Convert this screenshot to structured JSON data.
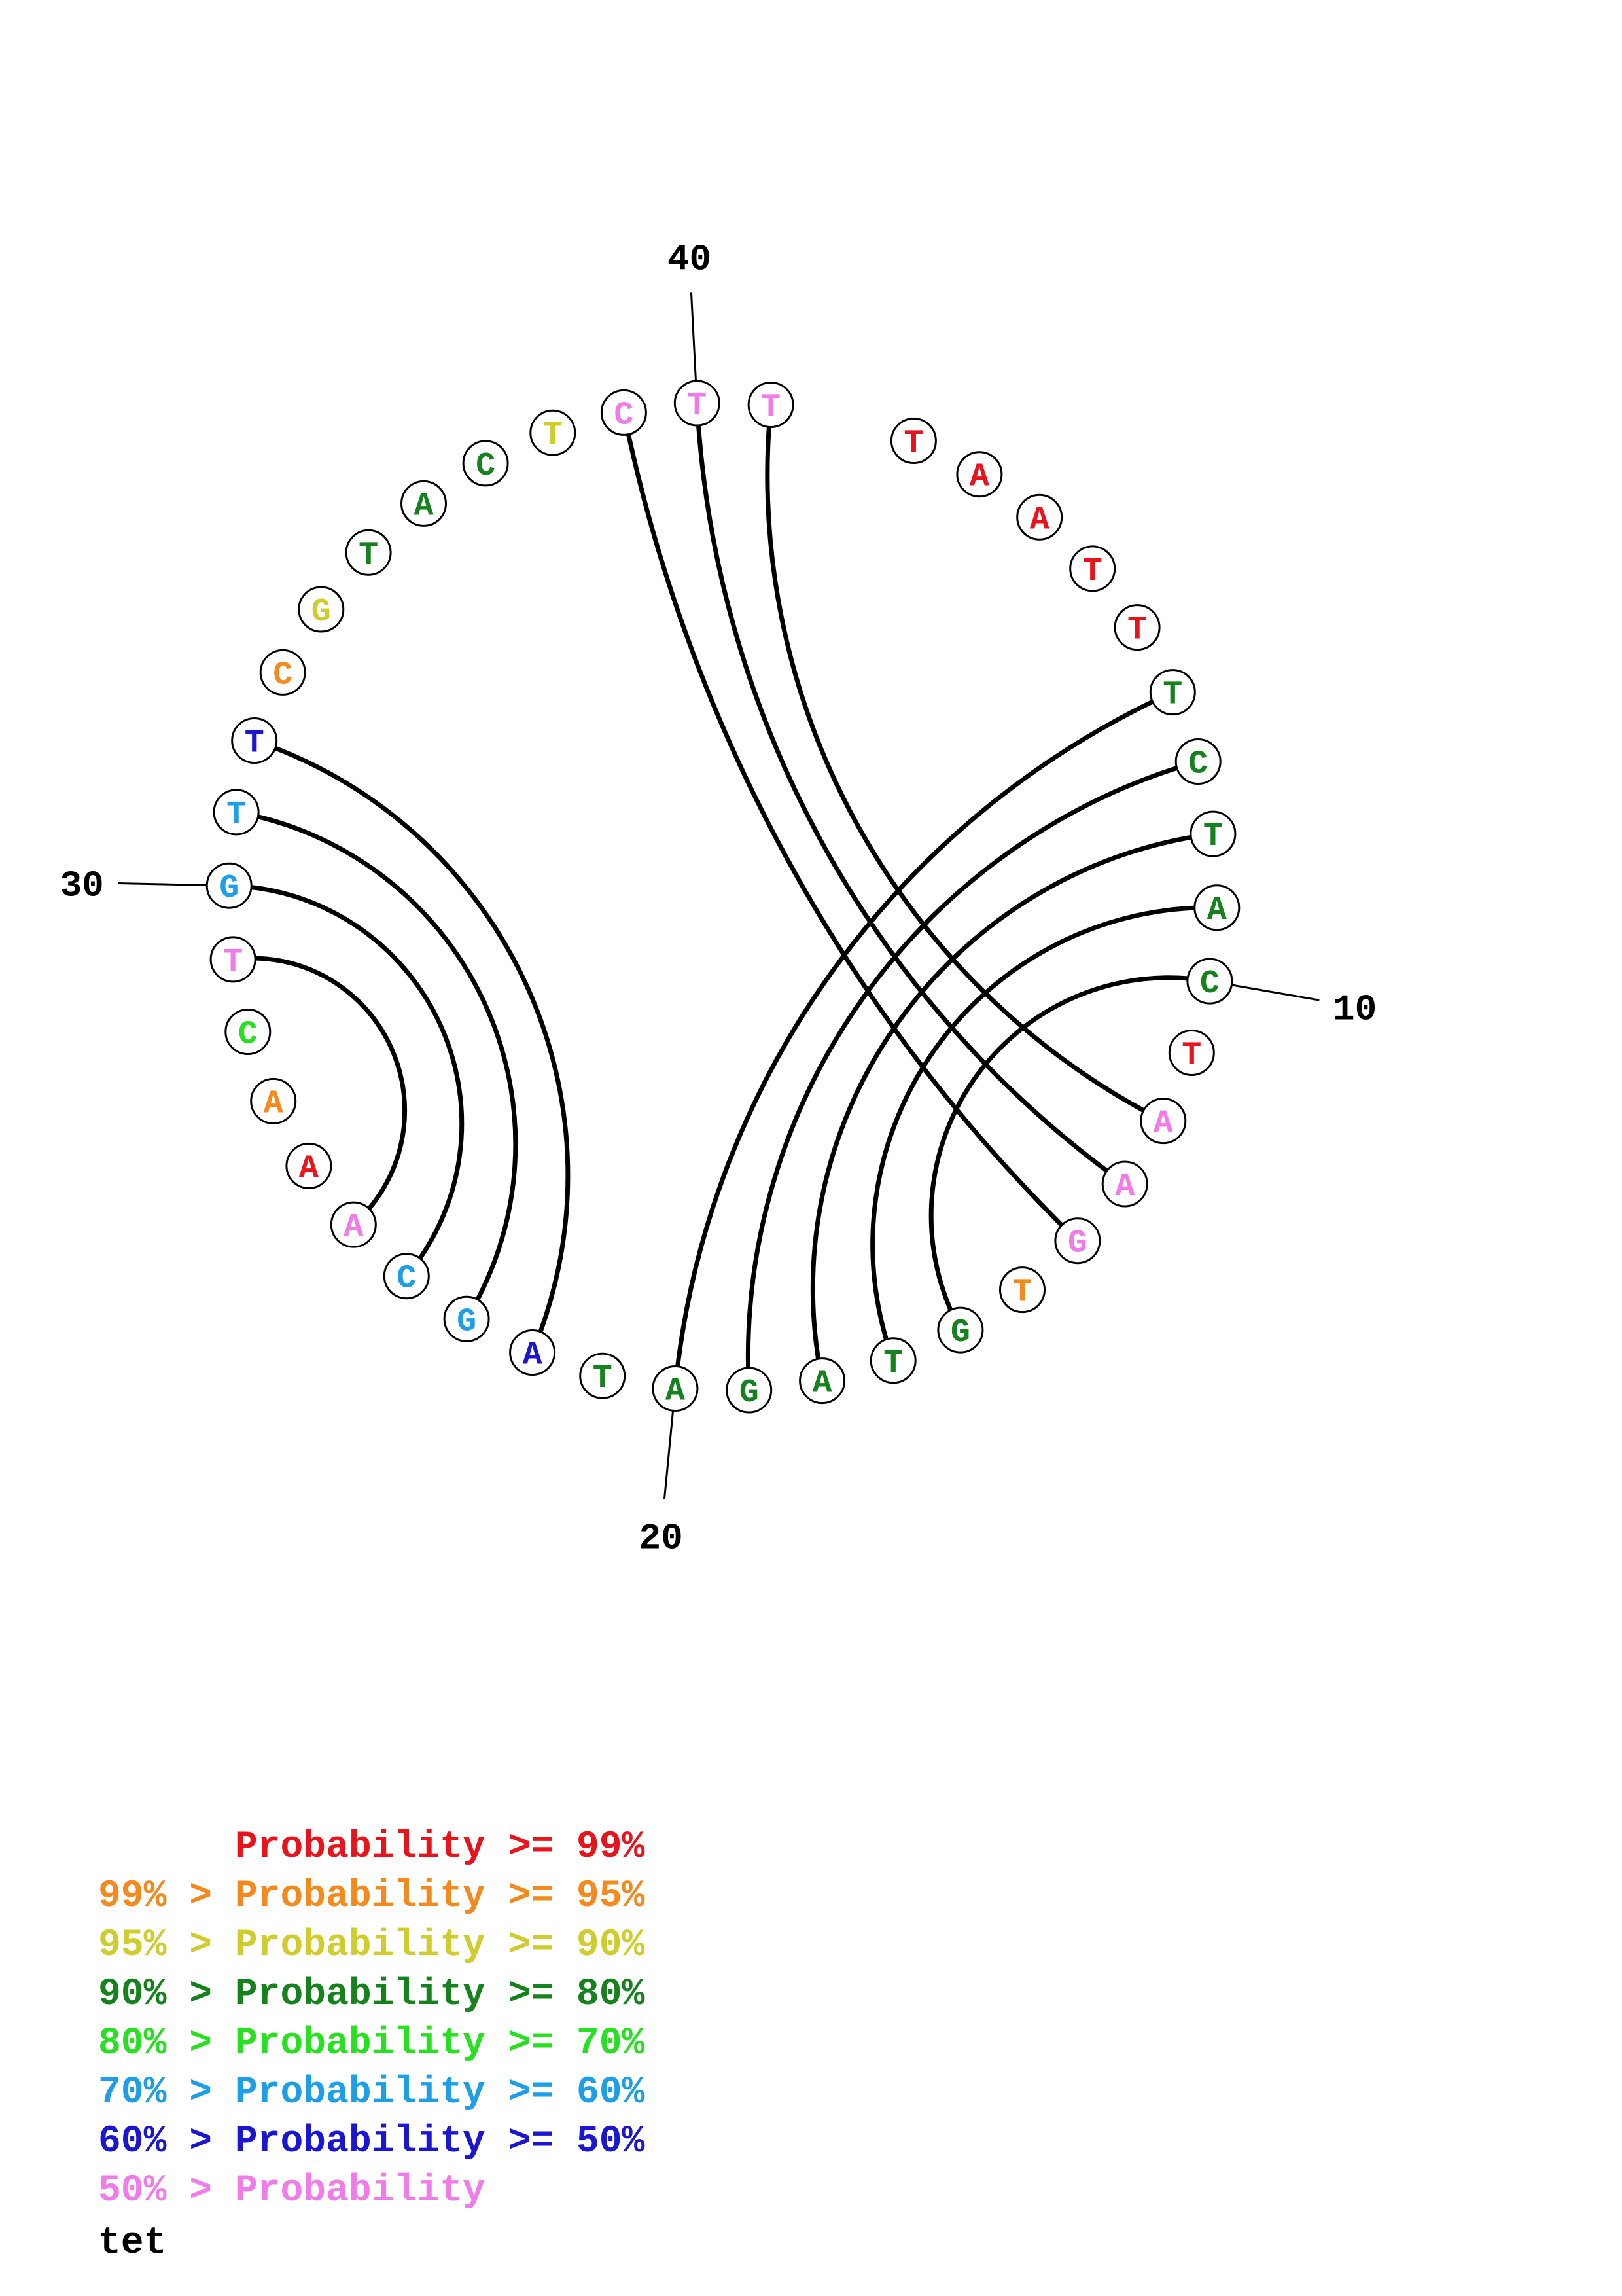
{
  "sequence": [
    {
      "base": "T",
      "color": "red"
    },
    {
      "base": "A",
      "color": "red"
    },
    {
      "base": "A",
      "color": "red"
    },
    {
      "base": "T",
      "color": "red"
    },
    {
      "base": "T",
      "color": "red"
    },
    {
      "base": "T",
      "color": "darkgreen"
    },
    {
      "base": "C",
      "color": "darkgreen"
    },
    {
      "base": "T",
      "color": "darkgreen"
    },
    {
      "base": "A",
      "color": "darkgreen"
    },
    {
      "base": "C",
      "color": "darkgreen"
    },
    {
      "base": "T",
      "color": "red"
    },
    {
      "base": "A",
      "color": "pink"
    },
    {
      "base": "A",
      "color": "pink"
    },
    {
      "base": "G",
      "color": "pink"
    },
    {
      "base": "T",
      "color": "orange"
    },
    {
      "base": "G",
      "color": "darkgreen"
    },
    {
      "base": "T",
      "color": "darkgreen"
    },
    {
      "base": "A",
      "color": "darkgreen"
    },
    {
      "base": "G",
      "color": "darkgreen"
    },
    {
      "base": "A",
      "color": "darkgreen"
    },
    {
      "base": "T",
      "color": "darkgreen"
    },
    {
      "base": "A",
      "color": "blue"
    },
    {
      "base": "G",
      "color": "lightblue"
    },
    {
      "base": "C",
      "color": "lightblue"
    },
    {
      "base": "A",
      "color": "pink"
    },
    {
      "base": "A",
      "color": "red"
    },
    {
      "base": "A",
      "color": "orange"
    },
    {
      "base": "C",
      "color": "green"
    },
    {
      "base": "T",
      "color": "pink"
    },
    {
      "base": "G",
      "color": "lightblue"
    },
    {
      "base": "T",
      "color": "lightblue"
    },
    {
      "base": "T",
      "color": "blue"
    },
    {
      "base": "C",
      "color": "orange"
    },
    {
      "base": "G",
      "color": "yellow"
    },
    {
      "base": "T",
      "color": "darkgreen"
    },
    {
      "base": "A",
      "color": "darkgreen"
    },
    {
      "base": "C",
      "color": "darkgreen"
    },
    {
      "base": "T",
      "color": "yellow"
    },
    {
      "base": "C",
      "color": "pink"
    },
    {
      "base": "T",
      "color": "pink"
    },
    {
      "base": "T",
      "color": "pink"
    }
  ],
  "pairs": [
    [
      6,
      20
    ],
    [
      7,
      19
    ],
    [
      8,
      18
    ],
    [
      9,
      17
    ],
    [
      10,
      16
    ],
    [
      12,
      41
    ],
    [
      13,
      40
    ],
    [
      14,
      39
    ],
    [
      22,
      32
    ],
    [
      23,
      31
    ],
    [
      24,
      30
    ],
    [
      25,
      29
    ]
  ],
  "tick_marks": [
    {
      "position": 10,
      "label": "10"
    },
    {
      "position": 20,
      "label": "20"
    },
    {
      "position": 30,
      "label": "30"
    },
    {
      "position": 40,
      "label": "40"
    }
  ],
  "colors": {
    "red": "#e8141b",
    "orange": "#f48a1e",
    "yellow": "#cfcc2e",
    "darkgreen": "#16821e",
    "green": "#27e01f",
    "lightblue": "#1e9ee6",
    "blue": "#1a16d2",
    "pink": "#f27bea"
  },
  "legend": [
    {
      "prefix": "",
      "text": "Probability >= 99%",
      "color": "red"
    },
    {
      "prefix": "99% > ",
      "text": "Probability >= 95%",
      "color": "orange"
    },
    {
      "prefix": "95% > ",
      "text": "Probability >= 90%",
      "color": "yellow"
    },
    {
      "prefix": "90% > ",
      "text": "Probability >= 80%",
      "color": "darkgreen"
    },
    {
      "prefix": "80% > ",
      "text": "Probability >= 70%",
      "color": "green"
    },
    {
      "prefix": "70% > ",
      "text": "Probability >= 60%",
      "color": "lightblue"
    },
    {
      "prefix": "60% > ",
      "text": "Probability >= 50%",
      "color": "blue"
    },
    {
      "prefix": "50% > ",
      "text": "Probability",
      "color": "pink"
    }
  ],
  "caption": "tet"
}
